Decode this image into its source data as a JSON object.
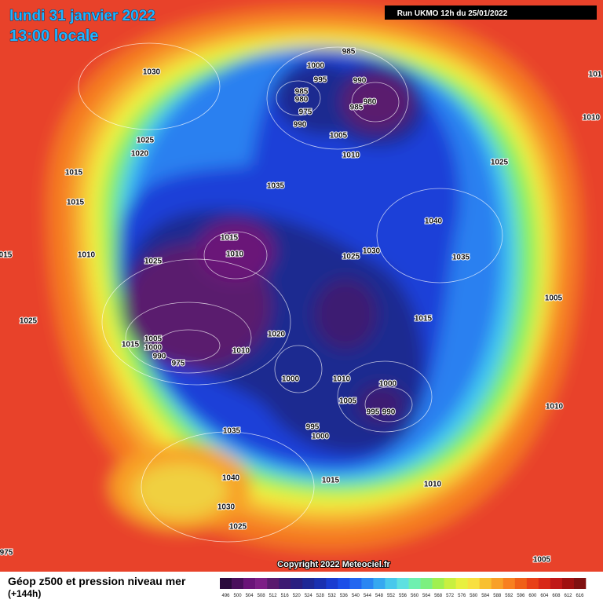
{
  "header": {
    "date": "lundi 31 janvier 2022",
    "time": "13:00 locale",
    "run": "Run UKMO 12h du 25/01/2022"
  },
  "copyright": "Copyright 2022 Meteociel.fr",
  "legend": {
    "title": "Géop z500 et pression niveau mer",
    "subtitle": "(+144h)",
    "values": [
      496,
      500,
      504,
      508,
      512,
      516,
      520,
      524,
      528,
      532,
      536,
      540,
      544,
      548,
      552,
      556,
      560,
      564,
      568,
      572,
      576,
      580,
      584,
      588,
      592,
      596,
      600,
      604,
      608,
      612,
      616
    ],
    "colors": [
      "#2b0a3d",
      "#4a0f5c",
      "#6a1478",
      "#7d1e86",
      "#5a1a6e",
      "#3d1a72",
      "#2a1f80",
      "#1e2896",
      "#1a30b0",
      "#1a3cd0",
      "#1c4ee8",
      "#2266f0",
      "#2a86f2",
      "#36a8f0",
      "#48c8ec",
      "#5ee0e0",
      "#6ef0b0",
      "#7cf080",
      "#a0f050",
      "#c8f040",
      "#e8f040",
      "#f8e040",
      "#f8c030",
      "#f8a028",
      "#f88020",
      "#f06018",
      "#e84018",
      "#d82818",
      "#c01818",
      "#a01010",
      "#801010"
    ]
  },
  "pressure_labels": [
    "985",
    "1000",
    "995",
    "990",
    "985",
    "980",
    "980",
    "985",
    "975",
    "990",
    "1005",
    "1010",
    "1030",
    "1025",
    "1020",
    "1015",
    "1015",
    "1035",
    "1040",
    "1025",
    "1015",
    "1010",
    "1025",
    "1010",
    "1025",
    "1030",
    "1035",
    "1005",
    "1025",
    "1015",
    "1020",
    "1015",
    "1005",
    "1000",
    "990",
    "975",
    "1010",
    "1000",
    "1010",
    "1000",
    "1005",
    "995",
    "990",
    "995",
    "1000",
    "1035",
    "1040",
    "1030",
    "1025",
    "1015",
    "1010",
    "1010",
    "1005",
    "015",
    "101",
    "1010",
    "975"
  ]
}
